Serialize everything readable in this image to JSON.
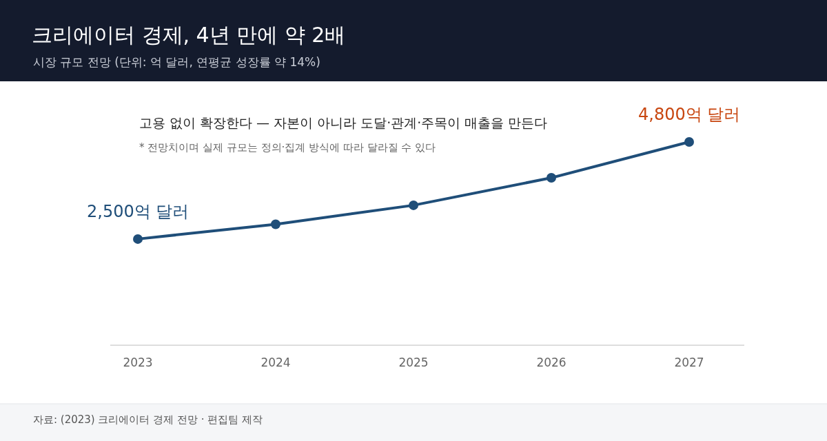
{
  "chart_data": {
    "type": "line",
    "title": "크리에이터 경제, 4년 만에 약 2배",
    "subtitle": "시장 규모 전망 (단위: 억 달러, 연평균 성장률 약 14%)",
    "categories": [
      "2023",
      "2024",
      "2025",
      "2026",
      "2027"
    ],
    "series": [
      {
        "color": "#1f4e79",
        "values": [
          2500,
          2850,
          3300,
          3950,
          4800
        ],
        "value_labels": [
          "2,500억 달러",
          null,
          null,
          null,
          "4,800억 달러"
        ]
      }
    ],
    "tick_labels": "x",
    "legend": false,
    "marker": "circle",
    "line_style": "solid",
    "annotations": [
      "고용 없이 확장한다 — 자본이 아니라 도달·관계·주목이 매출을 만든다",
      "* 전망치이며 실제 규모는 정의·집계 방식에 따라 달라질 수 있다",
      "자료: (2023) 크리에이터 경제 전망 · 편집팀 제작"
    ]
  }
}
